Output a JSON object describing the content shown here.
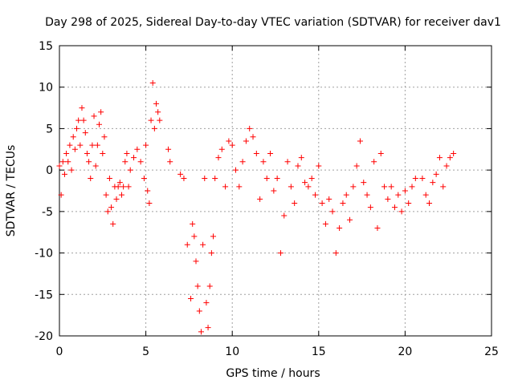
{
  "chart_data": {
    "type": "scatter",
    "title": "Day 298 of 2025, Sidereal Day-to-day VTEC variation (SDTVAR) for receiver dav1",
    "xlabel": "GPS time / hours",
    "ylabel": "SDTVAR / TECUs",
    "xlim": [
      0,
      25
    ],
    "ylim": [
      -20,
      15
    ],
    "xticks": [
      0,
      5,
      10,
      15,
      20,
      25
    ],
    "yticks": [
      -20,
      -15,
      -10,
      -5,
      0,
      5,
      10,
      15
    ],
    "xtick_labels": [
      "0",
      "5",
      "10",
      "15",
      "20",
      "25"
    ],
    "ytick_labels": [
      "-20",
      "-15",
      "-10",
      "-5",
      "0",
      "5",
      "10",
      "15"
    ],
    "grid": true,
    "marker": "plus",
    "series": [
      {
        "name": "SDTVAR",
        "color": "#ff0000",
        "x": [
          0.0,
          0.1,
          0.2,
          0.3,
          0.4,
          0.5,
          0.6,
          0.7,
          0.8,
          0.9,
          1.0,
          1.1,
          1.2,
          1.3,
          1.4,
          1.5,
          1.6,
          1.7,
          1.8,
          1.9,
          2.0,
          2.1,
          2.2,
          2.3,
          2.4,
          2.5,
          2.6,
          2.7,
          2.8,
          2.9,
          3.0,
          3.1,
          3.2,
          3.3,
          3.4,
          3.5,
          3.6,
          3.7,
          3.8,
          3.9,
          4.0,
          4.1,
          4.3,
          4.5,
          4.7,
          4.9,
          5.0,
          5.1,
          5.2,
          5.3,
          5.4,
          5.5,
          5.6,
          5.7,
          5.8,
          6.3,
          6.4,
          7.0,
          7.2,
          7.4,
          7.6,
          7.7,
          7.8,
          7.9,
          8.0,
          8.1,
          8.2,
          8.3,
          8.4,
          8.5,
          8.6,
          8.7,
          8.8,
          8.9,
          9.0,
          9.2,
          9.4,
          9.6,
          9.8,
          10.0,
          10.2,
          10.4,
          10.6,
          10.8,
          11.0,
          11.2,
          11.4,
          11.6,
          11.8,
          12.0,
          12.2,
          12.4,
          12.6,
          12.8,
          13.0,
          13.2,
          13.4,
          13.6,
          13.8,
          14.0,
          14.2,
          14.4,
          14.6,
          14.8,
          15.0,
          15.2,
          15.4,
          15.6,
          15.8,
          16.0,
          16.2,
          16.4,
          16.6,
          16.8,
          17.0,
          17.2,
          17.4,
          17.6,
          17.8,
          18.0,
          18.2,
          18.4,
          18.6,
          18.8,
          19.0,
          19.2,
          19.4,
          19.6,
          19.8,
          20.0,
          20.2,
          20.4,
          20.6,
          21.0,
          21.2,
          21.4,
          21.6,
          21.8,
          22.0,
          22.2,
          22.4,
          22.6,
          22.8
        ],
        "y": [
          0.5,
          -3.0,
          1.0,
          -0.5,
          2.0,
          1.0,
          3.0,
          0.0,
          4.0,
          2.5,
          5.0,
          6.0,
          3.0,
          7.5,
          6.0,
          4.5,
          2.0,
          1.0,
          -1.0,
          3.0,
          6.5,
          0.5,
          3.0,
          5.5,
          7.0,
          2.0,
          4.0,
          -3.0,
          -5.0,
          -1.0,
          -4.5,
          -6.5,
          -2.0,
          -3.5,
          -2.0,
          -1.5,
          -3.0,
          -2.0,
          1.0,
          2.0,
          -2.0,
          0.0,
          1.5,
          2.5,
          1.0,
          -1.0,
          3.0,
          -2.5,
          -4.0,
          6.0,
          10.5,
          5.0,
          8.0,
          7.0,
          6.0,
          2.5,
          1.0,
          -0.5,
          -1.0,
          -9.0,
          -15.5,
          -6.5,
          -8.0,
          -11.0,
          -14.0,
          -17.0,
          -19.5,
          -9.0,
          -1.0,
          -16.0,
          -19.0,
          -14.0,
          -10.0,
          -8.0,
          -1.0,
          1.5,
          2.5,
          -2.0,
          3.5,
          3.0,
          0.0,
          -2.0,
          1.0,
          3.5,
          5.0,
          4.0,
          2.0,
          -3.5,
          1.0,
          -1.0,
          2.0,
          -2.5,
          -1.0,
          -10.0,
          -5.5,
          1.0,
          -2.0,
          -4.0,
          0.5,
          1.5,
          -1.5,
          -2.0,
          -1.0,
          -3.0,
          0.5,
          -4.0,
          -6.5,
          -3.5,
          -5.0,
          -10.0,
          -7.0,
          -4.0,
          -3.0,
          -6.0,
          -2.0,
          0.5,
          3.5,
          -1.5,
          -3.0,
          -4.5,
          1.0,
          -7.0,
          2.0,
          -2.0,
          -3.5,
          -2.0,
          -4.5,
          -3.0,
          -5.0,
          -2.5,
          -4.0,
          -2.0,
          -1.0,
          -1.0,
          -3.0,
          -4.0,
          -1.5,
          -0.5,
          1.5,
          -2.0,
          0.5,
          1.5,
          2.0
        ]
      }
    ]
  }
}
